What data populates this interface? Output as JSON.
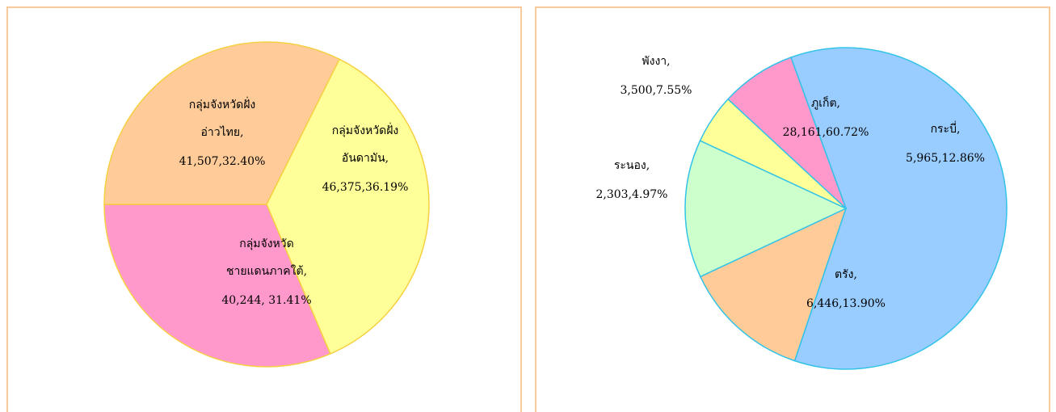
{
  "chart_data": [
    {
      "type": "pie",
      "categories": [
        [
          "กลุ่มจังหวัดฝั่ง",
          "อ่าวไทย,"
        ],
        [
          "กลุ่มจังหวัดฝั่ง",
          "อันดามัน,"
        ],
        [
          "กลุ่มจังหวัด",
          "ชายแดนภาคใต้,"
        ]
      ],
      "values": [
        32.4,
        36.19,
        31.41
      ],
      "value_labels": [
        "41,507,32.40%",
        "46,375,36.19%",
        "40,244, 31.41%"
      ],
      "colors": [
        "#ffcc99",
        "#ffff99",
        "#ff99cc"
      ],
      "edge_color": "#f5d040"
    },
    {
      "type": "pie",
      "categories": [
        [
          "ภูเก็ต,"
        ],
        [
          "กระบี่,"
        ],
        [
          "ตรัง,"
        ],
        [
          "ระนอง,"
        ],
        [
          "พังงา,"
        ]
      ],
      "values": [
        60.72,
        12.86,
        13.9,
        4.97,
        7.55
      ],
      "value_labels": [
        "28,161,60.72%",
        "5,965,12.86%",
        "6,446,13.90%",
        "2,303,4.97%",
        "3,500,7.55%"
      ],
      "colors": [
        "#99ccff",
        "#ffcc99",
        "#ccffcc",
        "#ffff99",
        "#ff99cc"
      ],
      "edge_color": "#33c3e8"
    }
  ]
}
